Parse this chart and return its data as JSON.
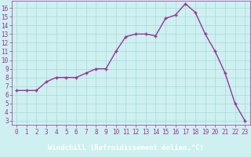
{
  "x": [
    0,
    1,
    2,
    3,
    4,
    5,
    6,
    7,
    8,
    9,
    10,
    11,
    12,
    13,
    14,
    15,
    16,
    17,
    18,
    19,
    20,
    21,
    22,
    23
  ],
  "y": [
    6.5,
    6.5,
    6.5,
    7.5,
    8.0,
    8.0,
    8.0,
    8.5,
    9.0,
    9.0,
    11.0,
    12.7,
    13.0,
    13.0,
    12.8,
    14.8,
    15.2,
    16.5,
    15.5,
    13.0,
    11.0,
    8.5,
    5.0,
    3.0
  ],
  "line_color": "#993399",
  "marker": "+",
  "marker_size": 3,
  "marker_lw": 1.0,
  "background_color": "#cff0f0",
  "grid_color": "#aadddd",
  "xlabel": "Windchill (Refroidissement éolien,°C)",
  "xlim": [
    -0.5,
    23.5
  ],
  "ylim": [
    2.5,
    16.8
  ],
  "yticks": [
    3,
    4,
    5,
    6,
    7,
    8,
    9,
    10,
    11,
    12,
    13,
    14,
    15,
    16
  ],
  "xticks": [
    0,
    1,
    2,
    3,
    4,
    5,
    6,
    7,
    8,
    9,
    10,
    11,
    12,
    13,
    14,
    15,
    16,
    17,
    18,
    19,
    20,
    21,
    22,
    23
  ],
  "tick_label_fontsize": 5.5,
  "xlabel_fontsize": 6.5,
  "xlabel_bar_color": "#993399",
  "xlabel_text_color": "#ffffff",
  "line_width": 1.0
}
